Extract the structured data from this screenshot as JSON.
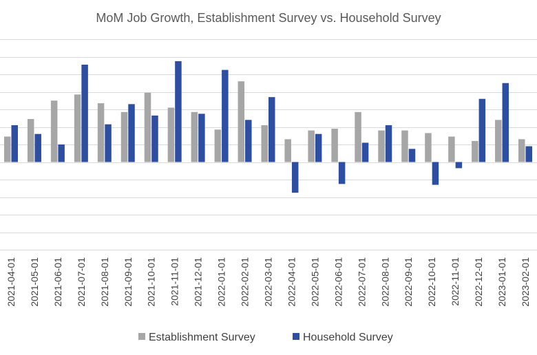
{
  "chart_data": {
    "type": "bar",
    "title": "MoM Job Growth, Establishment Survey vs. Household Survey",
    "xlabel": "",
    "ylabel": "",
    "ylim": [
      -1000,
      1400
    ],
    "y_step": 200,
    "y_tick_labels_shown": false,
    "grid": true,
    "legend_position": "bottom",
    "categories": [
      "2021-04-01",
      "2021-05-01",
      "2021-06-01",
      "2021-07-01",
      "2021-08-01",
      "2021-09-01",
      "2021-10-01",
      "2021-11-01",
      "2021-12-01",
      "2022-01-01",
      "2022-02-01",
      "2022-03-01",
      "2022-04-01",
      "2022-05-01",
      "2022-06-01",
      "2022-07-01",
      "2022-08-01",
      "2022-09-01",
      "2022-10-01",
      "2022-11-01",
      "2022-12-01",
      "2023-01-01",
      "2023-02-01"
    ],
    "series": [
      {
        "name": "Establishment Survey",
        "color": "#a6a6a6",
        "values": [
          290,
          490,
          700,
          770,
          670,
          570,
          790,
          620,
          570,
          370,
          920,
          420,
          260,
          360,
          380,
          570,
          360,
          360,
          330,
          290,
          240,
          480,
          260
        ]
      },
      {
        "name": "Household Survey",
        "color": "#2e4ea1",
        "values": [
          420,
          320,
          200,
          1110,
          430,
          660,
          530,
          1150,
          550,
          1050,
          480,
          740,
          -350,
          320,
          -250,
          220,
          420,
          150,
          -260,
          -70,
          720,
          900,
          180
        ]
      }
    ]
  }
}
